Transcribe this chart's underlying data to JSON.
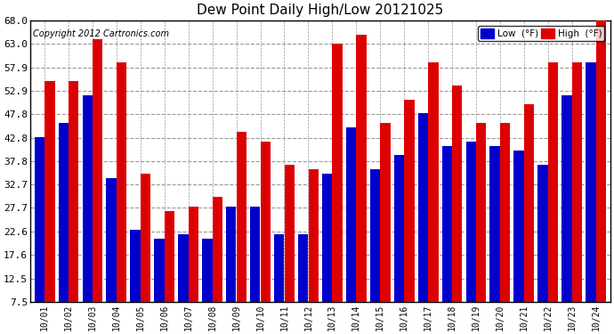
{
  "title": "Dew Point Daily High/Low 20121025",
  "copyright": "Copyright 2012 Cartronics.com",
  "categories": [
    "10/01",
    "10/02",
    "10/03",
    "10/04",
    "10/05",
    "10/06",
    "10/07",
    "10/08",
    "10/09",
    "10/10",
    "10/11",
    "10/12",
    "10/13",
    "10/14",
    "10/15",
    "10/16",
    "10/17",
    "10/18",
    "10/19",
    "10/20",
    "10/21",
    "10/22",
    "10/23",
    "10/24"
  ],
  "low_values": [
    43,
    46,
    52,
    34,
    23,
    21,
    22,
    21,
    28,
    28,
    22,
    22,
    35,
    45,
    36,
    39,
    48,
    41,
    42,
    41,
    40,
    37,
    52,
    59
  ],
  "high_values": [
    55,
    55,
    64,
    59,
    35,
    27,
    28,
    30,
    44,
    42,
    37,
    36,
    63,
    65,
    46,
    51,
    59,
    54,
    46,
    46,
    50,
    59,
    59,
    68
  ],
  "low_color": "#0000cc",
  "high_color": "#dd0000",
  "bg_color": "#ffffff",
  "plot_bg_color": "#ffffff",
  "grid_color": "#999999",
  "ylim_min": 7.5,
  "ylim_max": 68.0,
  "yticks": [
    7.5,
    12.5,
    17.6,
    22.6,
    27.7,
    32.7,
    37.8,
    42.8,
    47.8,
    52.9,
    57.9,
    63.0,
    68.0
  ],
  "legend_low_label": "Low  (°F)",
  "legend_high_label": "High  (°F)"
}
